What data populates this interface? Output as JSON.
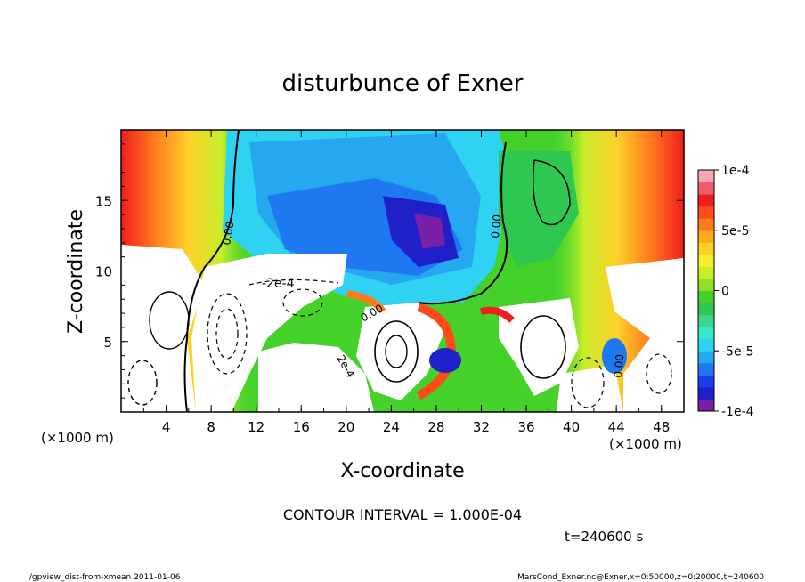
{
  "chart_data": {
    "type": "heatmap",
    "title": "disturbunce of Exner",
    "xlabel": "X-coordinate",
    "ylabel": "Z-coordinate",
    "x_unit_label": "(×1000 m)",
    "z_unit_label": "(×1000 m)",
    "xlim": [
      0,
      50
    ],
    "ylim": [
      0,
      20
    ],
    "x_ticks": [
      4,
      8,
      12,
      16,
      20,
      24,
      28,
      32,
      36,
      40,
      44,
      48
    ],
    "y_ticks": [
      5,
      10,
      15
    ],
    "colorbar": {
      "range": [
        -0.0001,
        0.0001
      ],
      "tick_values": [
        0.0001,
        5e-05,
        0,
        -5e-05,
        -0.0001
      ],
      "tick_labels": [
        "1e-4",
        "5e-5",
        "0",
        "-5e-5",
        "-1e-4"
      ],
      "colors": [
        "#7a1fa8",
        "#2020c8",
        "#1c3cf0",
        "#1e78f0",
        "#25a8f0",
        "#2fd2f0",
        "#38e6c8",
        "#3ad48a",
        "#2ec850",
        "#44d22a",
        "#8ee02a",
        "#c8ee2a",
        "#f4f02a",
        "#ffd028",
        "#ffa820",
        "#ff7a1c",
        "#ff4a1a",
        "#f01e1e",
        "#f05a6e",
        "#f8a4b4"
      ]
    },
    "contour_labels": [
      "0.00",
      "-2e-4",
      "0.00",
      "0.00",
      "0.00",
      "2e-4"
    ],
    "contour_interval": "CONTOUR INTERVAL = 1.000E-04",
    "time_label": "t=240600 s"
  },
  "footer": {
    "left": "./gpview_dist-from-xmean  2011-01-06",
    "right": "MarsCond_Exner.nc@Exner,x=0:50000,z=0:20000,t=240600"
  }
}
